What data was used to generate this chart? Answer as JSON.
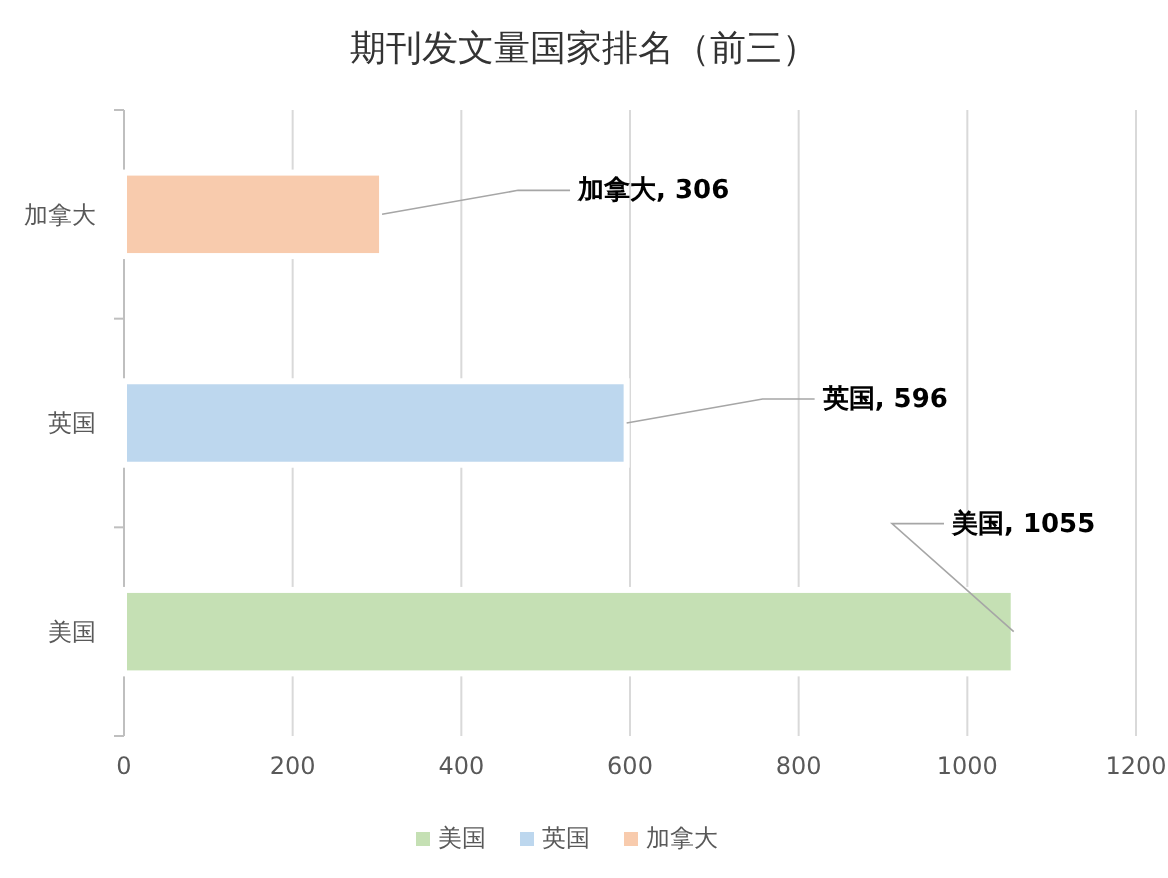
{
  "chart_data": {
    "type": "bar",
    "orientation": "horizontal",
    "title": "期刊发文量国家排名（前三）",
    "categories": [
      "加拿大",
      "英国",
      "美国"
    ],
    "series": [
      {
        "name": "美国",
        "color": "#c5e0b4",
        "values": [
          null,
          null,
          1055
        ],
        "value_labels": [
          null,
          null,
          "美国, 1055"
        ]
      },
      {
        "name": "英国",
        "color": "#bdd7ee",
        "values": [
          null,
          596,
          null
        ],
        "value_labels": [
          null,
          "英国, 596",
          null
        ]
      },
      {
        "name": "加拿大",
        "color": "#f8cbad",
        "values": [
          306,
          null,
          null
        ],
        "value_labels": [
          "加拿大, 306",
          null,
          null
        ]
      }
    ],
    "xlim": [
      0,
      1200
    ],
    "xticks": [
      0,
      200,
      400,
      600,
      800,
      1000,
      1200
    ],
    "grid": "x",
    "legend": "bottom"
  }
}
